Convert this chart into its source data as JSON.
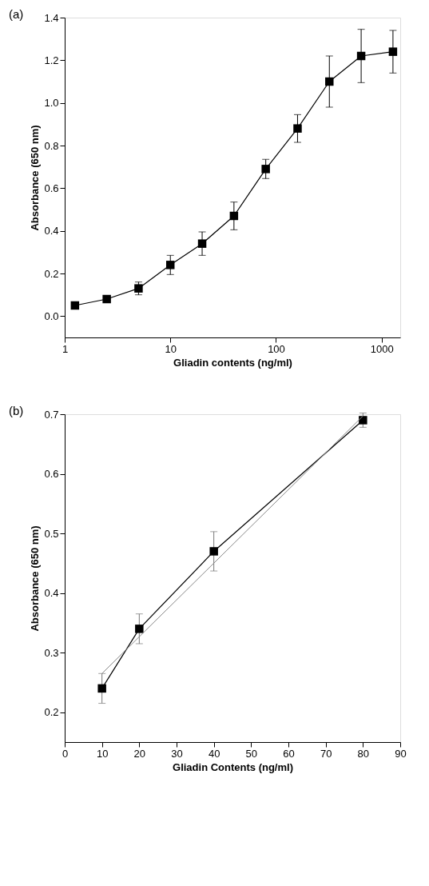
{
  "chart_data": [
    {
      "type": "line",
      "title": "(a)",
      "xlabel": "Gliadin contents (ng/ml)",
      "ylabel": "Absorbance (650 nm)",
      "log": "x",
      "xlim": [
        1,
        1500
      ],
      "xticks": [
        1,
        10,
        100,
        1000
      ],
      "ylim": [
        -0.1,
        1.4
      ],
      "yticks": [
        {
          "value": 0,
          "label": "0.0"
        },
        0.2,
        0.4,
        0.6,
        0.8,
        {
          "value": 1,
          "label": "1.0"
        },
        1.2,
        1.4
      ],
      "grid": false,
      "marker": "square",
      "x": [
        1.25,
        2.5,
        5,
        10,
        20,
        40,
        80,
        160,
        320,
        640,
        1280
      ],
      "series": [
        {
          "color": "#000000",
          "values": [
            0.05,
            0.08,
            0.13,
            0.24,
            0.34,
            0.47,
            0.69,
            0.88,
            1.1,
            1.22,
            1.24
          ],
          "errors": [
            null,
            null,
            0.03,
            0.045,
            0.055,
            0.065,
            0.045,
            0.065,
            0.12,
            0.125,
            0.1
          ]
        }
      ]
    },
    {
      "type": "line",
      "title": "(b)",
      "xlabel": "Gliadin Contents (ng/ml)",
      "ylabel": "Absorbance (650 nm)",
      "xlim": [
        0,
        90
      ],
      "xticks": [
        0,
        10,
        20,
        30,
        40,
        50,
        60,
        70,
        80,
        90
      ],
      "ylim": [
        0.15,
        0.7
      ],
      "yticks": [
        0.2,
        0.3,
        0.4,
        0.5,
        0.6,
        0.7
      ],
      "grid": false,
      "marker": "square",
      "x": [
        10,
        20,
        40,
        80
      ],
      "series": [
        {
          "color": "#000000",
          "values": [
            0.24,
            0.34,
            0.47,
            0.69
          ],
          "errors": [
            0.025,
            0.025,
            0.033,
            0.012
          ]
        },
        {
          "type": "line",
          "marker": "none",
          "color": "#888888",
          "x": [
            10,
            80
          ],
          "values": [
            0.265,
            0.697
          ]
        }
      ]
    }
  ]
}
